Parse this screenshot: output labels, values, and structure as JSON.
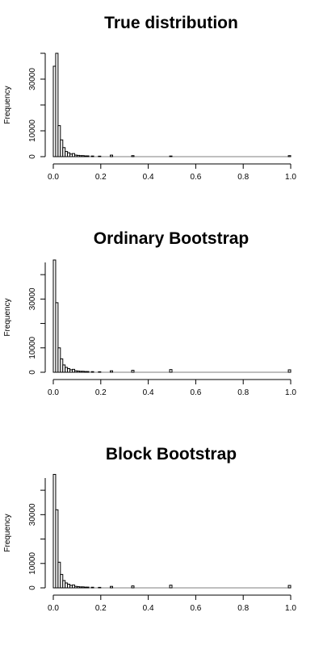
{
  "chart_data": [
    {
      "type": "bar",
      "title": "True distribution",
      "xlabel": "",
      "ylabel": "Frequency",
      "xlim": [
        0,
        1
      ],
      "ylim": [
        0,
        40000
      ],
      "x_ticks": [
        "0.0",
        "0.2",
        "0.4",
        "0.6",
        "0.8",
        "1.0"
      ],
      "y_ticks": [
        "0",
        "10000",
        "30000"
      ],
      "y_tick_values": [
        0,
        10000,
        30000
      ],
      "bin_width": 0.01,
      "x": [
        0.0,
        0.01,
        0.02,
        0.03,
        0.04,
        0.05,
        0.06,
        0.07,
        0.08,
        0.09,
        0.1,
        0.11,
        0.12,
        0.13,
        0.14,
        0.16,
        0.19,
        0.24,
        0.33,
        0.49,
        0.99
      ],
      "values": [
        35000,
        40000,
        12000,
        6500,
        3500,
        2000,
        1500,
        1000,
        1200,
        600,
        500,
        400,
        400,
        300,
        300,
        250,
        200,
        600,
        400,
        250,
        400
      ]
    },
    {
      "type": "bar",
      "title": "Ordinary Bootstrap",
      "xlabel": "",
      "ylabel": "Frequency",
      "xlim": [
        0,
        1
      ],
      "ylim": [
        0,
        45000
      ],
      "x_ticks": [
        "0.0",
        "0.2",
        "0.4",
        "0.6",
        "0.8",
        "1.0"
      ],
      "y_ticks": [
        "0",
        "10000",
        "30000"
      ],
      "y_tick_values": [
        0,
        10000,
        30000
      ],
      "bin_width": 0.01,
      "x": [
        0.0,
        0.01,
        0.02,
        0.03,
        0.04,
        0.05,
        0.06,
        0.07,
        0.08,
        0.09,
        0.1,
        0.11,
        0.12,
        0.13,
        0.14,
        0.16,
        0.19,
        0.24,
        0.33,
        0.49,
        0.99
      ],
      "values": [
        46000,
        28500,
        10000,
        5500,
        3000,
        2000,
        1500,
        1000,
        1200,
        600,
        500,
        400,
        400,
        300,
        300,
        250,
        200,
        600,
        800,
        1100,
        1000
      ]
    },
    {
      "type": "bar",
      "title": "Block Bootstrap",
      "xlabel": "",
      "ylabel": "Frequency",
      "xlim": [
        0,
        1
      ],
      "ylim": [
        0,
        45000
      ],
      "x_ticks": [
        "0.0",
        "0.2",
        "0.4",
        "0.6",
        "0.8",
        "1.0"
      ],
      "y_ticks": [
        "0",
        "10000",
        "30000"
      ],
      "y_tick_values": [
        0,
        10000,
        30000
      ],
      "bin_width": 0.01,
      "x": [
        0.0,
        0.01,
        0.02,
        0.03,
        0.04,
        0.05,
        0.06,
        0.07,
        0.08,
        0.09,
        0.1,
        0.11,
        0.12,
        0.13,
        0.14,
        0.16,
        0.19,
        0.24,
        0.33,
        0.49,
        0.99
      ],
      "values": [
        46500,
        32000,
        10500,
        5500,
        3000,
        2000,
        1500,
        1000,
        1200,
        600,
        500,
        400,
        400,
        300,
        300,
        250,
        200,
        600,
        800,
        1100,
        1000
      ]
    }
  ]
}
